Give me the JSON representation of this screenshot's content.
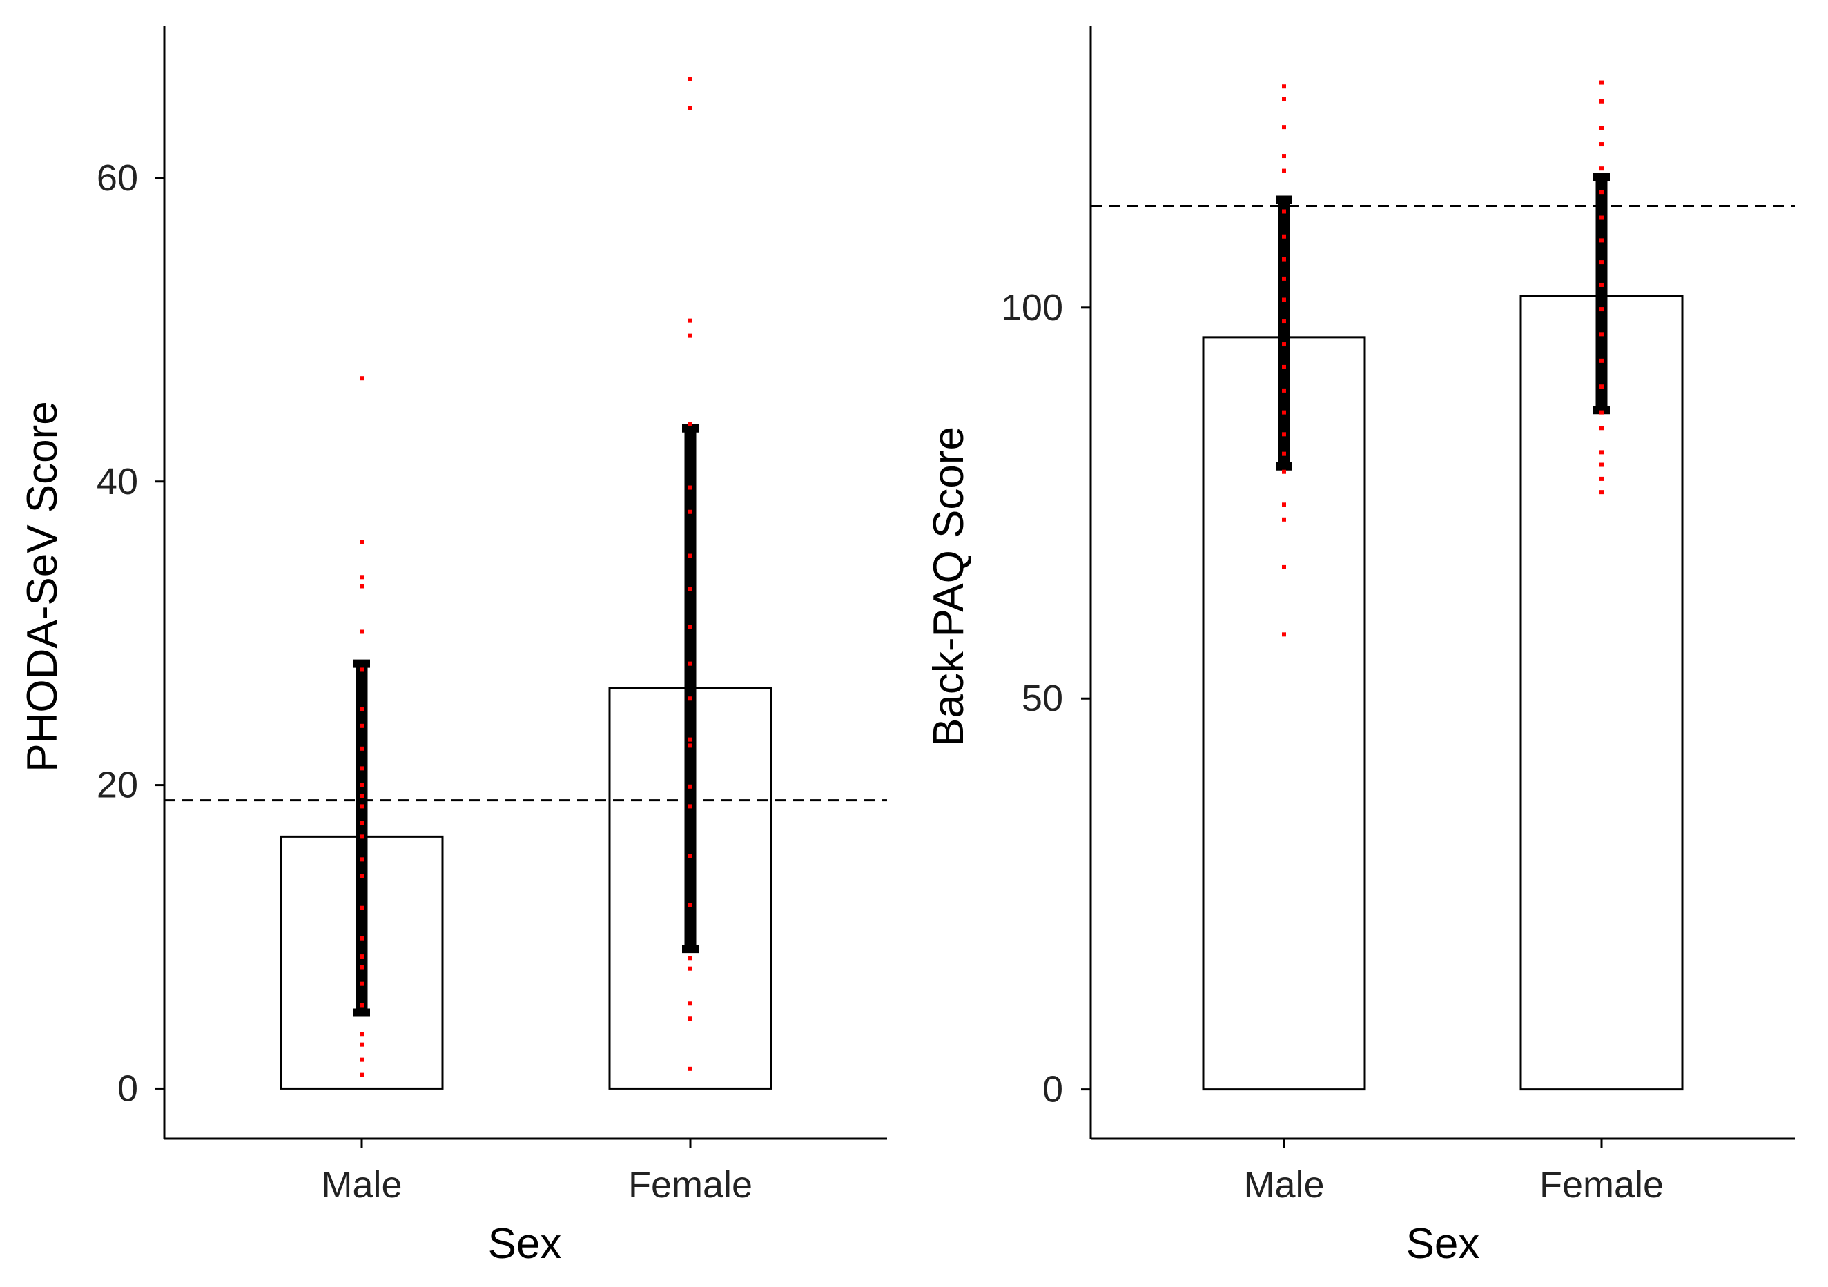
{
  "chart_data": [
    {
      "type": "bar",
      "panel": "left",
      "categories": [
        "Male",
        "Female"
      ],
      "values": [
        16.6,
        26.4
      ],
      "error_bars": [
        {
          "category": "Male",
          "low": 5.0,
          "high": 28.0
        },
        {
          "category": "Female",
          "low": 9.2,
          "high": 43.5
        }
      ],
      "points": [
        {
          "category": "Male",
          "values": [
            0.9,
            1.9,
            2.9,
            3.6,
            5.5,
            6.9,
            8.0,
            8.7,
            9.9,
            11.9,
            14.0,
            15.1,
            16.6,
            17.5,
            18.6,
            19.3,
            20.0,
            21.1,
            22.4,
            23.9,
            25.0,
            27.6,
            30.1,
            33.1,
            33.7,
            36.0,
            46.8
          ]
        },
        {
          "category": "Female",
          "values": [
            1.3,
            4.6,
            5.6,
            7.9,
            8.6,
            12.1,
            15.3,
            18.6,
            19.9,
            22.6,
            23.0,
            25.7,
            28.0,
            30.4,
            32.9,
            35.1,
            38.0,
            39.6,
            43.8,
            49.6,
            50.6,
            64.6,
            66.5
          ]
        }
      ],
      "reference_line": 19.0,
      "ylabel": "PHODA-SeV Score",
      "xlabel": "Sex",
      "ylim": [
        -3.3,
        70
      ],
      "yticks": [
        0,
        20,
        40,
        60
      ],
      "grid": false
    },
    {
      "type": "bar",
      "panel": "right",
      "categories": [
        "Male",
        "Female"
      ],
      "values": [
        96.2,
        101.5
      ],
      "error_bars": [
        {
          "category": "Male",
          "low": 79.7,
          "high": 113.8
        },
        {
          "category": "Female",
          "low": 86.9,
          "high": 116.7
        }
      ],
      "points": [
        {
          "category": "Male",
          "values": [
            58.2,
            66.8,
            72.9,
            74.8,
            79.0,
            81.3,
            83.8,
            86.6,
            89.4,
            92.4,
            95.3,
            98.3,
            101.0,
            103.7,
            106.2,
            109.1,
            112.3,
            117.5,
            119.4,
            123.1,
            126.7,
            128.3
          ]
        },
        {
          "category": "Female",
          "values": [
            76.4,
            78.1,
            79.9,
            81.5,
            84.6,
            86.6,
            89.9,
            93.2,
            96.6,
            99.8,
            102.9,
            105.8,
            108.6,
            111.5,
            114.8,
            117.8,
            120.9,
            123.0,
            126.4,
            128.8
          ]
        }
      ],
      "reference_line": 113.0,
      "ylabel": "Back-PAQ Score",
      "xlabel": "Sex",
      "ylim": [
        -6.3,
        136
      ],
      "yticks": [
        0,
        50,
        100
      ],
      "grid": false
    }
  ],
  "colors": {
    "bar_fill": "#ffffff",
    "bar_outline": "#000000",
    "error_bar": "#000000",
    "points": "#ff0000",
    "reference_line": "#000000",
    "axis": "#000000",
    "tick_label": "#222222"
  }
}
